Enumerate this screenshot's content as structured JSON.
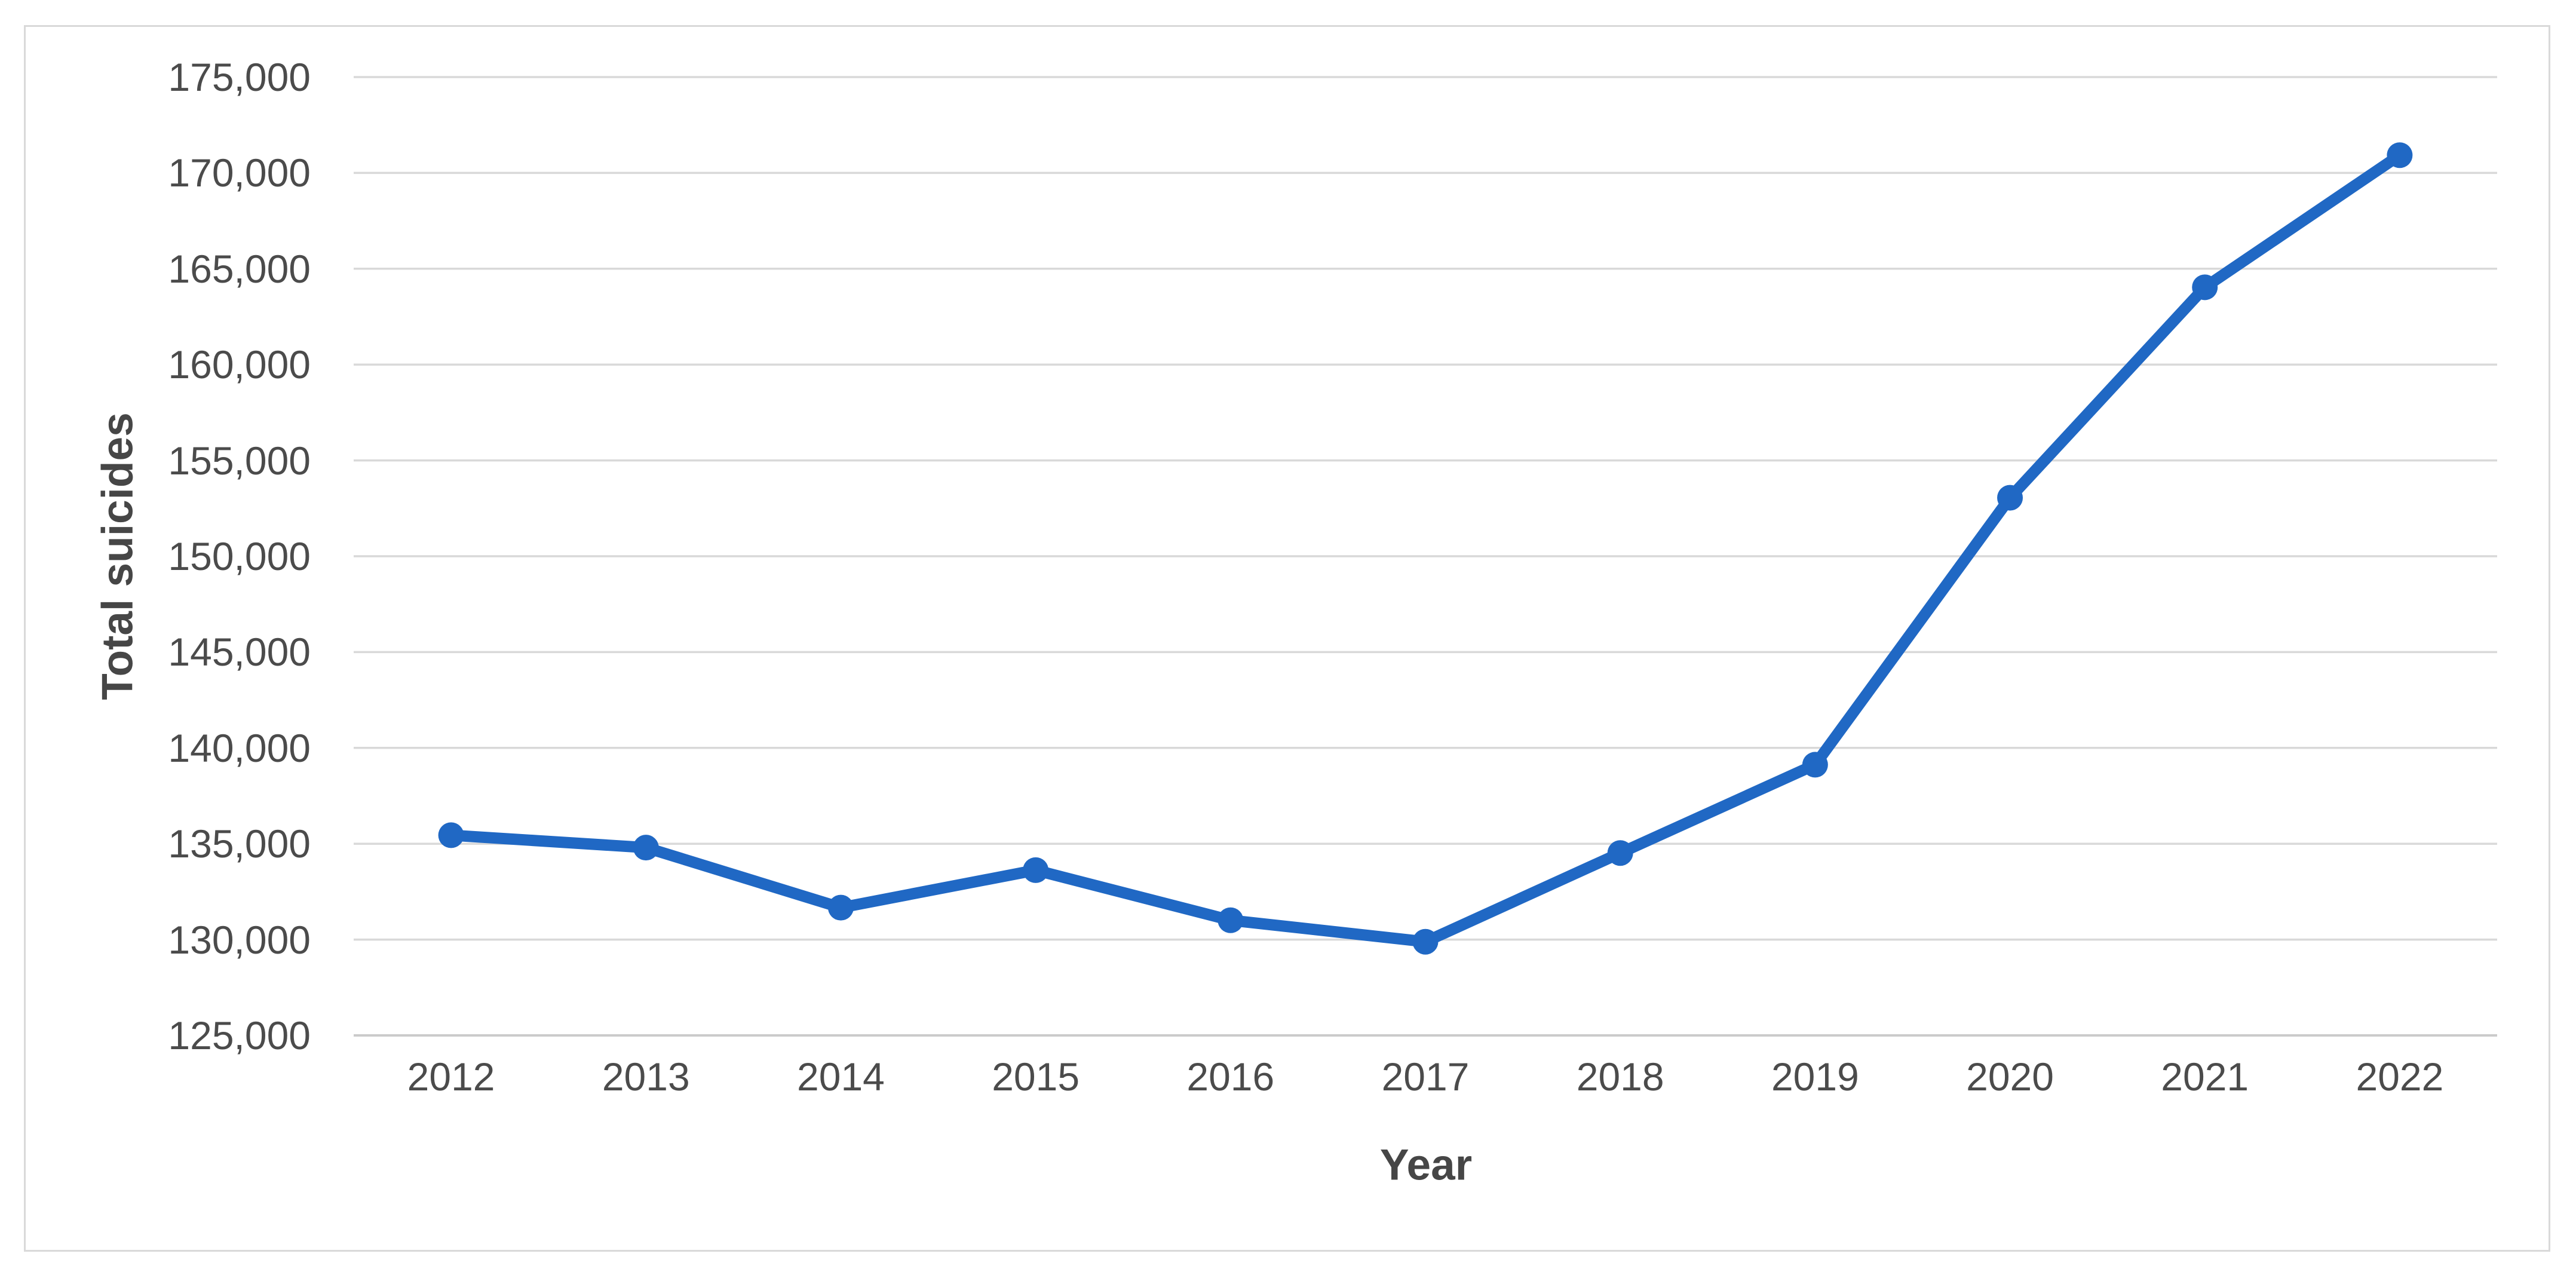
{
  "chart_data": {
    "type": "line",
    "title": "",
    "xlabel": "Year",
    "ylabel": "Total suicides",
    "categories": [
      "2012",
      "2013",
      "2014",
      "2015",
      "2016",
      "2017",
      "2018",
      "2019",
      "2020",
      "2021",
      "2022"
    ],
    "series": [
      {
        "name": "Total suicides",
        "values": [
          135445,
          134799,
          131666,
          133623,
          131008,
          129887,
          134516,
          139123,
          153052,
          164033,
          170924
        ]
      }
    ],
    "ylim": [
      125000,
      175000
    ],
    "ytick_step": 5000,
    "ytick_labels": [
      "125,000",
      "130,000",
      "135,000",
      "140,000",
      "145,000",
      "150,000",
      "155,000",
      "160,000",
      "165,000",
      "170,000",
      "175,000"
    ],
    "grid": "horizontal",
    "legend": "none",
    "marker": "circle"
  },
  "colors": {
    "line": "#2068C4",
    "marker": "#2068C4",
    "gridline": "#D9D9D9",
    "axis_line": "#CBCBCB",
    "tick_text": "#4B4B4B",
    "title_text": "#464646",
    "frame_border": "#D9D9D9",
    "background": "#FFFFFF"
  }
}
